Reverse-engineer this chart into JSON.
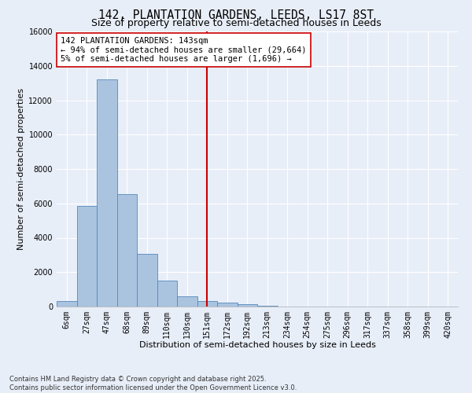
{
  "title_line1": "142, PLANTATION GARDENS, LEEDS, LS17 8ST",
  "title_line2": "Size of property relative to semi-detached houses in Leeds",
  "xlabel": "Distribution of semi-detached houses by size in Leeds",
  "ylabel": "Number of semi-detached properties",
  "categories": [
    "6sqm",
    "27sqm",
    "47sqm",
    "68sqm",
    "89sqm",
    "110sqm",
    "130sqm",
    "151sqm",
    "172sqm",
    "192sqm",
    "213sqm",
    "234sqm",
    "254sqm",
    "275sqm",
    "296sqm",
    "317sqm",
    "337sqm",
    "358sqm",
    "399sqm",
    "420sqm"
  ],
  "bar_values": [
    300,
    5850,
    13200,
    6550,
    3050,
    1500,
    575,
    300,
    220,
    120,
    60,
    0,
    0,
    0,
    0,
    0,
    0,
    0,
    0,
    0
  ],
  "bar_color": "#aac4e0",
  "bar_edge_color": "#5588bb",
  "background_color": "#e8eef8",
  "grid_color": "#ffffff",
  "vline_color": "#cc0000",
  "vline_index": 7,
  "annotation_text": "142 PLANTATION GARDENS: 143sqm\n← 94% of semi-detached houses are smaller (29,664)\n5% of semi-detached houses are larger (1,696) →",
  "annotation_box_color": "#ffffff",
  "annotation_box_edge_color": "#cc0000",
  "ylim": [
    0,
    16000
  ],
  "yticks": [
    0,
    2000,
    4000,
    6000,
    8000,
    10000,
    12000,
    14000,
    16000
  ],
  "footer_line1": "Contains HM Land Registry data © Crown copyright and database right 2025.",
  "footer_line2": "Contains public sector information licensed under the Open Government Licence v3.0.",
  "title_fontsize": 10.5,
  "subtitle_fontsize": 9,
  "axis_label_fontsize": 8,
  "tick_fontsize": 7,
  "annotation_fontsize": 7.5,
  "footer_fontsize": 6
}
